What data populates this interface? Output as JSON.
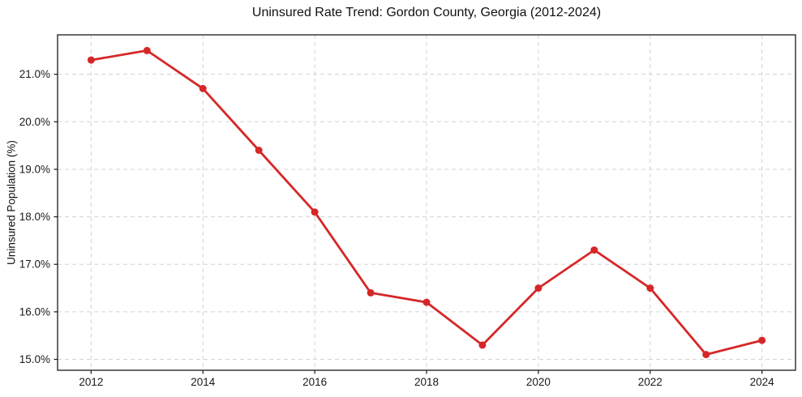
{
  "chart_data": {
    "type": "line",
    "title": "Uninsured Rate Trend: Gordon County, Georgia (2012-2024)",
    "xlabel": "",
    "ylabel": "Uninsured Population (%)",
    "x": [
      2012,
      2013,
      2014,
      2015,
      2016,
      2017,
      2018,
      2019,
      2020,
      2021,
      2022,
      2023,
      2024
    ],
    "values": [
      21.3,
      21.5,
      20.7,
      19.4,
      18.1,
      16.4,
      16.2,
      15.3,
      16.5,
      17.3,
      16.5,
      15.1,
      15.4
    ],
    "xlim": [
      2011.4,
      2024.6
    ],
    "ylim": [
      14.77,
      21.83
    ],
    "xticks": [
      2012,
      2014,
      2016,
      2018,
      2020,
      2022,
      2024
    ],
    "xtick_labels": [
      "2012",
      "2014",
      "2016",
      "2018",
      "2020",
      "2022",
      "2024"
    ],
    "yticks": [
      15,
      16,
      17,
      18,
      19,
      20,
      21
    ],
    "ytick_labels": [
      "15.0%",
      "16.0%",
      "17.0%",
      "18.0%",
      "19.0%",
      "20.0%",
      "21.0%"
    ],
    "grid": true,
    "grid_style": "dashed",
    "legend": "none",
    "line_color": "#d62728",
    "marker": "circle"
  }
}
